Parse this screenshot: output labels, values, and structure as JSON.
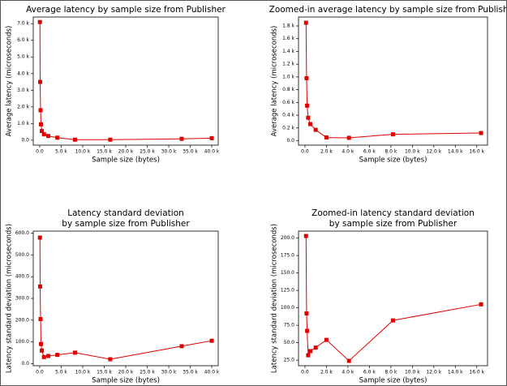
{
  "chart_data": [
    {
      "type": "line",
      "title": [
        "Average latency by sample size from Publisher"
      ],
      "x_label": "Sample size (bytes)",
      "y_label": "Average latency (microseconds)",
      "color": "#e00000",
      "x": [
        50,
        100,
        200,
        300,
        500,
        1000,
        2000,
        4100,
        8200,
        16400,
        33000,
        40000
      ],
      "values": [
        7100,
        3500,
        1800,
        950,
        550,
        350,
        250,
        150,
        30,
        30,
        80,
        120
      ],
      "xlim": [
        -1500,
        41500
      ],
      "ylim": [
        -300,
        7400
      ],
      "xticks": [
        {
          "value": 0,
          "label": "0.0"
        },
        {
          "value": 5000,
          "label": "5.0 k"
        },
        {
          "value": 10000,
          "label": "10.0 k"
        },
        {
          "value": 15000,
          "label": "15.0 k"
        },
        {
          "value": 20000,
          "label": "20.0 k"
        },
        {
          "value": 25000,
          "label": "25.0 k"
        },
        {
          "value": 30000,
          "label": "30.0 k"
        },
        {
          "value": 35000,
          "label": "35.0 k"
        },
        {
          "value": 40000,
          "label": "40.0 k"
        }
      ],
      "yticks": [
        {
          "value": 0,
          "label": "0.0"
        },
        {
          "value": 1000,
          "label": "1.0 k"
        },
        {
          "value": 2000,
          "label": "2.0 k"
        },
        {
          "value": 3000,
          "label": "3.0 k"
        },
        {
          "value": 4000,
          "label": "4.0 k"
        },
        {
          "value": 5000,
          "label": "5.0 k"
        },
        {
          "value": 6000,
          "label": "6.0 k"
        },
        {
          "value": 7000,
          "label": "7.0 k"
        }
      ]
    },
    {
      "type": "line",
      "title": [
        "Zoomed-in average latency by sample size from Publisher"
      ],
      "x_label": "Sample size (bytes)",
      "y_label": "Average latency (microseconds)",
      "color": "#e00000",
      "x": [
        100,
        150,
        200,
        300,
        500,
        1000,
        2000,
        4100,
        8200,
        16400
      ],
      "values": [
        1850,
        980,
        550,
        360,
        260,
        170,
        50,
        45,
        100,
        120
      ],
      "xlim": [
        -600,
        17000
      ],
      "ylim": [
        -70,
        1940
      ],
      "xticks": [
        {
          "value": 0,
          "label": "0.0"
        },
        {
          "value": 2000,
          "label": "2.0 k"
        },
        {
          "value": 4000,
          "label": "4.0 k"
        },
        {
          "value": 6000,
          "label": "6.0 k"
        },
        {
          "value": 8000,
          "label": "8.0 k"
        },
        {
          "value": 10000,
          "label": "10.0 k"
        },
        {
          "value": 12000,
          "label": "12.0 k"
        },
        {
          "value": 14000,
          "label": "14.0 k"
        },
        {
          "value": 16000,
          "label": "16.0 k"
        }
      ],
      "yticks": [
        {
          "value": 0,
          "label": "0.0"
        },
        {
          "value": 200,
          "label": "0.2 k"
        },
        {
          "value": 400,
          "label": "0.4 k"
        },
        {
          "value": 600,
          "label": "0.6 k"
        },
        {
          "value": 800,
          "label": "0.8 k"
        },
        {
          "value": 1000,
          "label": "1.0 k"
        },
        {
          "value": 1200,
          "label": "1.2 k"
        },
        {
          "value": 1400,
          "label": "1.4 k"
        },
        {
          "value": 1600,
          "label": "1.6 k"
        },
        {
          "value": 1800,
          "label": "1.8 k"
        }
      ]
    },
    {
      "type": "line",
      "title": [
        "Latency standard deviation",
        "by sample size from Publisher"
      ],
      "x_label": "Sample size (bytes)",
      "y_label": "Latency standard deviation (microseconds)",
      "color": "#e00000",
      "x": [
        50,
        100,
        200,
        300,
        500,
        1000,
        2000,
        4100,
        8200,
        16400,
        33000,
        40000
      ],
      "values": [
        580,
        355,
        205,
        90,
        60,
        30,
        35,
        40,
        50,
        20,
        80,
        105
      ],
      "xlim": [
        -1500,
        41500
      ],
      "ylim": [
        -10,
        610
      ],
      "xticks": [
        {
          "value": 0,
          "label": "0.0"
        },
        {
          "value": 5000,
          "label": "5.0 k"
        },
        {
          "value": 10000,
          "label": "10.0 k"
        },
        {
          "value": 15000,
          "label": "15.0 k"
        },
        {
          "value": 20000,
          "label": "20.0 k"
        },
        {
          "value": 25000,
          "label": "25.0 k"
        },
        {
          "value": 30000,
          "label": "30.0 k"
        },
        {
          "value": 35000,
          "label": "35.0 k"
        },
        {
          "value": 40000,
          "label": "40.0 k"
        }
      ],
      "yticks": [
        {
          "value": 0,
          "label": "0.0"
        },
        {
          "value": 100,
          "label": "100.0"
        },
        {
          "value": 200,
          "label": "200.0"
        },
        {
          "value": 300,
          "label": "300.0"
        },
        {
          "value": 400,
          "label": "400.0"
        },
        {
          "value": 500,
          "label": "500.0"
        },
        {
          "value": 600,
          "label": "600.0"
        }
      ]
    },
    {
      "type": "line",
      "title": [
        "Zoomed-in latency standard deviation",
        "by sample size from Publisher"
      ],
      "x_label": "Sample size (bytes)",
      "y_label": "Latency standard deviation (microseconds)",
      "color": "#e00000",
      "x": [
        100,
        150,
        200,
        300,
        500,
        1000,
        2000,
        4100,
        8200,
        16400
      ],
      "values": [
        203,
        92,
        67,
        32,
        38,
        43,
        54,
        24,
        82,
        105
      ],
      "xlim": [
        -600,
        17000
      ],
      "ylim": [
        17,
        210
      ],
      "xticks": [
        {
          "value": 0,
          "label": "0.0"
        },
        {
          "value": 2000,
          "label": "2.0 k"
        },
        {
          "value": 4000,
          "label": "4.0 k"
        },
        {
          "value": 6000,
          "label": "6.0 k"
        },
        {
          "value": 8000,
          "label": "8.0 k"
        },
        {
          "value": 10000,
          "label": "10.0 k"
        },
        {
          "value": 12000,
          "label": "12.0 k"
        },
        {
          "value": 14000,
          "label": "14.0 k"
        },
        {
          "value": 16000,
          "label": "16.0 k"
        }
      ],
      "yticks": [
        {
          "value": 25,
          "label": "25.0"
        },
        {
          "value": 50,
          "label": "50.0"
        },
        {
          "value": 75,
          "label": "75.0"
        },
        {
          "value": 100,
          "label": "100.0"
        },
        {
          "value": 125,
          "label": "125.0"
        },
        {
          "value": 150,
          "label": "150.0"
        },
        {
          "value": 175,
          "label": "175.0"
        },
        {
          "value": 200,
          "label": "200.0"
        }
      ]
    }
  ]
}
